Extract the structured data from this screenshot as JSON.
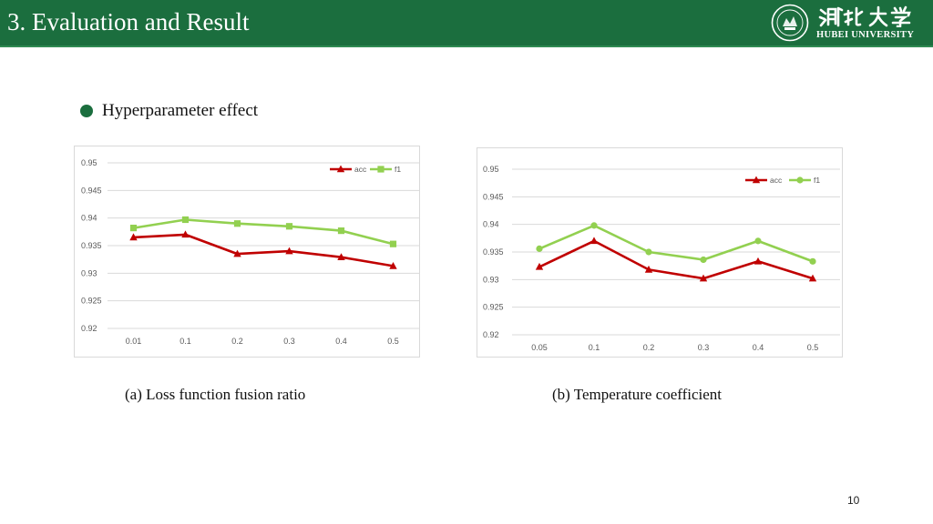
{
  "header": {
    "title": "3. Evaluation and Result",
    "logo_text_cn": "湖北大学",
    "logo_text_en": "HUBEI UNIVERSITY",
    "bg_color": "#1b6e3e"
  },
  "bullet": {
    "text": "Hyperparameter effect"
  },
  "captions": {
    "a": "(a) Loss function fusion ratio",
    "b": "(b) Temperature coefficient"
  },
  "page_number": "10",
  "chart_data": [
    {
      "type": "line",
      "categories": [
        "0.01",
        "0.1",
        "0.2",
        "0.3",
        "0.4",
        "0.5"
      ],
      "series": [
        {
          "name": "acc",
          "values": [
            0.9365,
            0.937,
            0.9335,
            0.934,
            0.9329,
            0.9313
          ],
          "color": "#c00000",
          "marker": "triangle"
        },
        {
          "name": "f1",
          "values": [
            0.9382,
            0.9397,
            0.939,
            0.9385,
            0.9377,
            0.9353
          ],
          "color": "#92d050",
          "marker": "square"
        }
      ],
      "yticks": [
        "0.92",
        "0.925",
        "0.93",
        "0.935",
        "0.94",
        "0.945",
        "0.95"
      ],
      "ylim": [
        0.92,
        0.95
      ],
      "legend": "top-right",
      "grid": true
    },
    {
      "type": "line",
      "categories": [
        "0.05",
        "0.1",
        "0.2",
        "0.3",
        "0.4",
        "0.5"
      ],
      "series": [
        {
          "name": "acc",
          "values": [
            0.9323,
            0.937,
            0.9318,
            0.9302,
            0.9333,
            0.9302
          ],
          "color": "#c00000",
          "marker": "triangle"
        },
        {
          "name": "f1",
          "values": [
            0.9356,
            0.9398,
            0.935,
            0.9336,
            0.937,
            0.9333
          ],
          "color": "#92d050",
          "marker": "circle"
        }
      ],
      "yticks": [
        "0.92",
        "0.925",
        "0.93",
        "0.935",
        "0.94",
        "0.945",
        "0.95"
      ],
      "ylim": [
        0.92,
        0.95
      ],
      "legend": "top-right",
      "grid": true
    }
  ]
}
